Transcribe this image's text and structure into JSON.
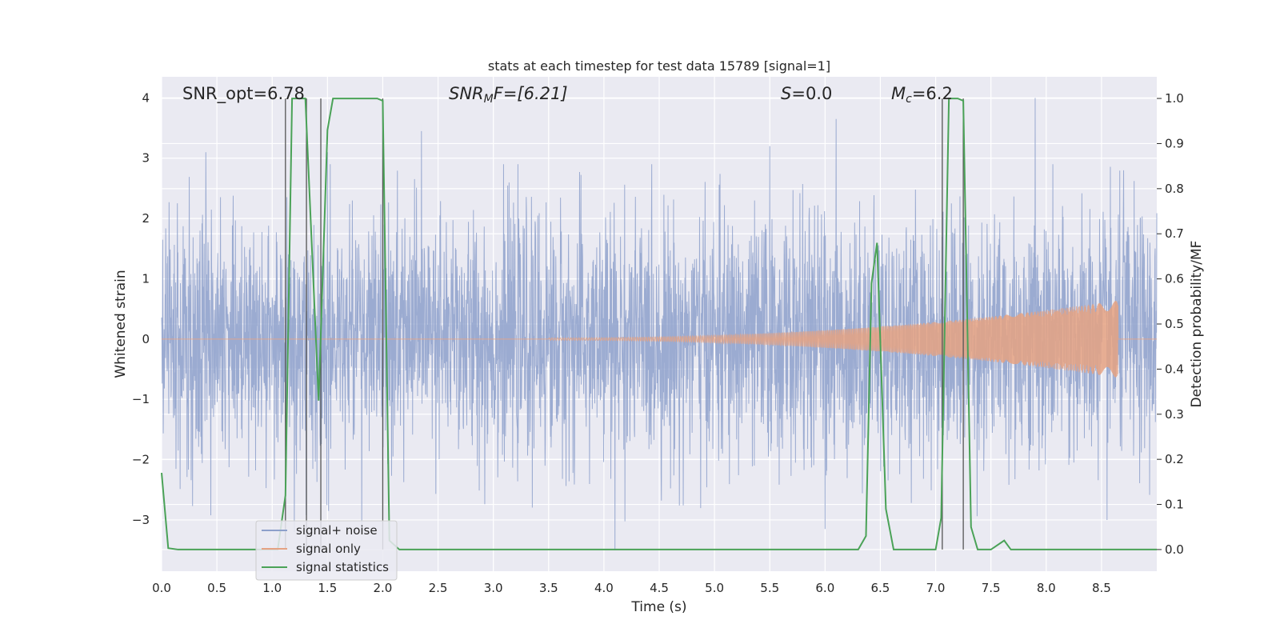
{
  "chart_data": {
    "type": "line",
    "title": "stats at each timestep for test data 15789 [signal=1]",
    "xlabel": "Time (s)",
    "ylabel_left": "Whitened strain",
    "ylabel_right": "Detection probability/MF",
    "xlim": [
      0,
      9.0
    ],
    "ylim_left": [
      -3.85,
      4.35
    ],
    "ylim_right": [
      -0.048,
      1.048
    ],
    "x_ticks": [
      "0.0",
      "0.5",
      "1.0",
      "1.5",
      "2.0",
      "2.5",
      "3.0",
      "3.5",
      "4.0",
      "4.5",
      "5.0",
      "5.5",
      "6.0",
      "6.5",
      "7.0",
      "7.5",
      "8.0",
      "8.5"
    ],
    "y_left_ticks": [
      "4",
      "3",
      "2",
      "1",
      "0",
      "−1",
      "−2",
      "−3"
    ],
    "y_right_ticks": [
      "1.0",
      "0.9",
      "0.8",
      "0.7",
      "0.6",
      "0.5",
      "0.4",
      "0.3",
      "0.2",
      "0.1",
      "0.0"
    ],
    "grid": true,
    "legend_position": "lower-left",
    "annotations": {
      "snr_opt": "SNR_opt=6.78",
      "snr_mf_main": "SNR",
      "snr_mf_sub": "M",
      "snr_mf_rest": "F=[6.21]",
      "s_italic": "S",
      "s_rest": "=0.0",
      "mc_italic": "M",
      "mc_sub": "c",
      "mc_rest": "=6.2"
    },
    "series": [
      {
        "name": "signal+ noise",
        "color": "#8da0cb",
        "axis": "left",
        "description_values": "noise-dominated strain, mostly within [-2.5, 2.5] with spikes up to 4 and down to -3.5",
        "peak_points": [
          [
            0.4,
            3.1
          ],
          [
            1.5,
            3.1
          ],
          [
            2.35,
            3.45
          ],
          [
            4.1,
            -3.5
          ],
          [
            5.5,
            3.2
          ],
          [
            6.1,
            3.65
          ],
          [
            6.0,
            -3.15
          ],
          [
            7.9,
            4.0
          ],
          [
            8.7,
            2.8
          ],
          [
            8.55,
            -3.0
          ]
        ]
      },
      {
        "name": "signal only",
        "color": "#e5a283",
        "axis": "left",
        "chirp_start": 3.5,
        "chirp_end": 8.65,
        "max_amplitude": 0.62
      },
      {
        "name": "signal statistics",
        "color": "#4aa257",
        "axis": "right",
        "points": [
          [
            0.0,
            0.17
          ],
          [
            0.06,
            0.003
          ],
          [
            0.15,
            0.0
          ],
          [
            1.05,
            0.0
          ],
          [
            1.12,
            0.12
          ],
          [
            1.18,
            1.0
          ],
          [
            1.3,
            1.0
          ],
          [
            1.42,
            0.33
          ],
          [
            1.5,
            0.93
          ],
          [
            1.55,
            1.0
          ],
          [
            1.95,
            1.0
          ],
          [
            2.0,
            0.995
          ],
          [
            2.06,
            0.02
          ],
          [
            2.15,
            0.0
          ],
          [
            6.3,
            0.0
          ],
          [
            6.37,
            0.03
          ],
          [
            6.42,
            0.59
          ],
          [
            6.47,
            0.68
          ],
          [
            6.55,
            0.09
          ],
          [
            6.62,
            0.0
          ],
          [
            7.0,
            0.0
          ],
          [
            7.05,
            0.07
          ],
          [
            7.12,
            1.0
          ],
          [
            7.2,
            1.0
          ],
          [
            7.25,
            0.995
          ],
          [
            7.32,
            0.05
          ],
          [
            7.38,
            0.0
          ],
          [
            7.5,
            0.0
          ],
          [
            7.62,
            0.02
          ],
          [
            7.68,
            0.0
          ],
          [
            9.0,
            0.0
          ]
        ]
      }
    ],
    "vertical_lines": [
      1.12,
      1.31,
      1.44,
      2.0,
      7.06,
      7.25
    ]
  }
}
